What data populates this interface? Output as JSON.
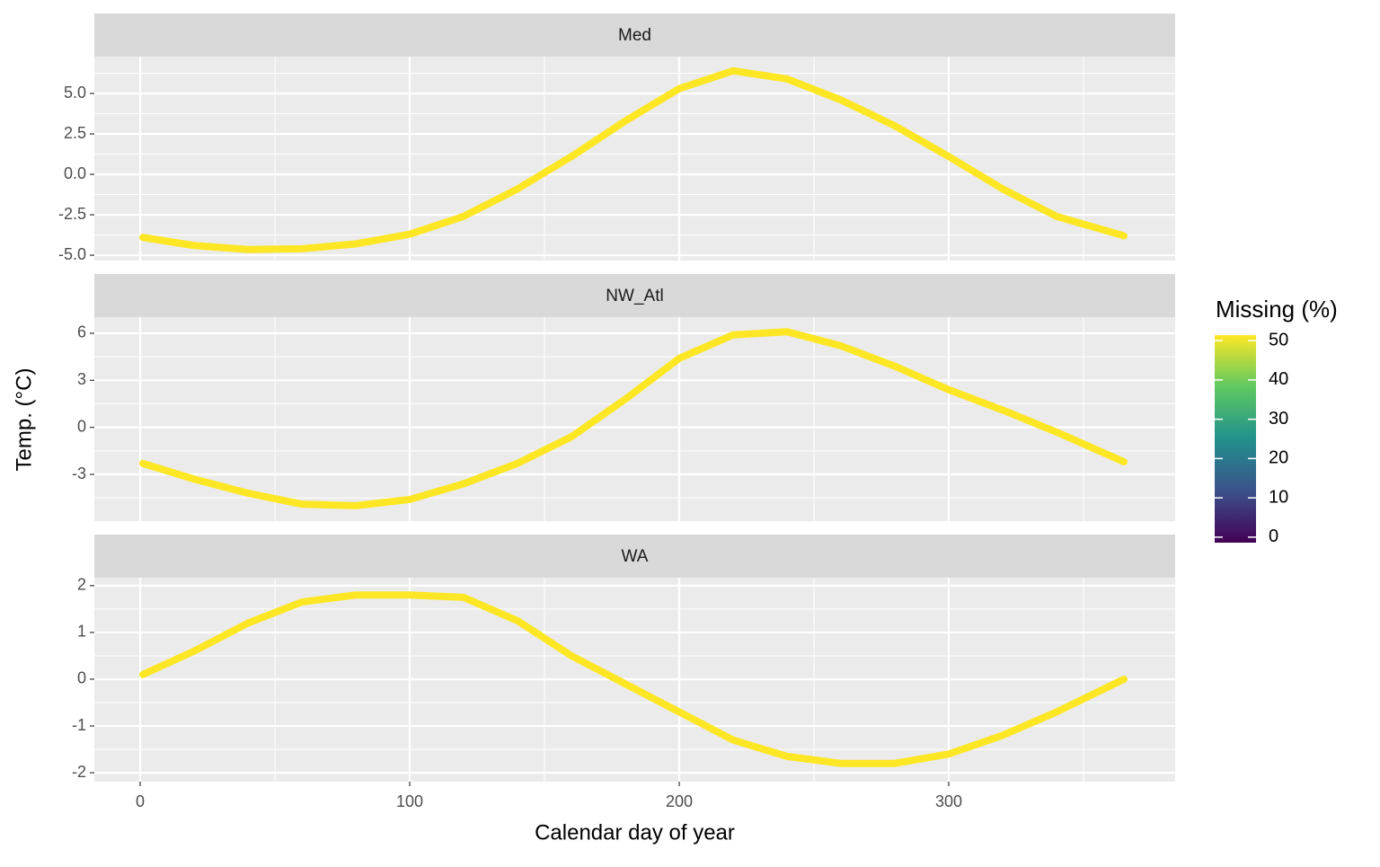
{
  "chart_data": [
    {
      "type": "line",
      "title": "Med",
      "x": [
        1,
        20,
        40,
        60,
        80,
        100,
        120,
        140,
        160,
        180,
        200,
        220,
        240,
        260,
        280,
        300,
        320,
        340,
        365
      ],
      "values": [
        -3.9,
        -4.4,
        -4.65,
        -4.6,
        -4.3,
        -3.7,
        -2.6,
        -0.9,
        1.1,
        3.3,
        5.3,
        6.4,
        5.9,
        4.6,
        3.0,
        1.1,
        -0.9,
        -2.6,
        -3.8
      ],
      "color": "#fde725",
      "xlim": [
        -17,
        384
      ],
      "xticks": [
        0,
        100,
        200,
        300
      ],
      "ylim": [
        -5.33,
        7.28
      ],
      "yticks": [
        {
          "value": -5,
          "label": "-5.0"
        },
        -2.5,
        {
          "value": 0,
          "label": "0.0"
        },
        2.5,
        {
          "value": 5,
          "label": "5.0"
        }
      ],
      "grid": true
    },
    {
      "type": "line",
      "title": "NW_Atl",
      "y_label": "Temp. (°C)",
      "x": [
        1,
        20,
        40,
        60,
        80,
        100,
        120,
        140,
        160,
        180,
        200,
        220,
        240,
        260,
        280,
        300,
        320,
        340,
        365
      ],
      "values": [
        -2.3,
        -3.3,
        -4.2,
        -4.9,
        -5.0,
        -4.6,
        -3.6,
        -2.3,
        -0.6,
        1.8,
        4.4,
        5.9,
        6.1,
        5.2,
        3.9,
        2.4,
        1.1,
        -0.3,
        -2.2
      ],
      "color": "#fde725",
      "xlim": [
        -17,
        384
      ],
      "xticks": [
        0,
        100,
        200,
        300
      ],
      "ylim": [
        -5.98,
        7.03
      ],
      "yticks": [
        -3,
        0,
        3,
        6
      ],
      "grid": true
    },
    {
      "type": "line",
      "title": "WA",
      "x_label": "Calendar day of year",
      "x": [
        1,
        20,
        40,
        60,
        80,
        100,
        120,
        140,
        160,
        180,
        200,
        220,
        240,
        260,
        280,
        300,
        320,
        340,
        365
      ],
      "values": [
        0.1,
        0.6,
        1.2,
        1.65,
        1.8,
        1.8,
        1.75,
        1.25,
        0.5,
        -0.1,
        -0.7,
        -1.3,
        -1.65,
        -1.8,
        -1.8,
        -1.6,
        -1.2,
        -0.7,
        0.0
      ],
      "color": "#fde725",
      "xlim": [
        -17,
        384
      ],
      "xticks": [
        0,
        100,
        200,
        300
      ],
      "ylim": [
        -2.19,
        2.17
      ],
      "yticks": [
        -2,
        -1,
        0,
        1,
        2
      ],
      "grid": true
    }
  ],
  "colorbar": {
    "title": "Missing (%)",
    "lim": [
      -1.4,
      51.4
    ],
    "ticks": [
      0,
      10,
      20,
      30,
      40,
      50
    ],
    "colors": [
      "#440154",
      "#3b528b",
      "#21918c",
      "#5ec962",
      "#fde725"
    ]
  }
}
